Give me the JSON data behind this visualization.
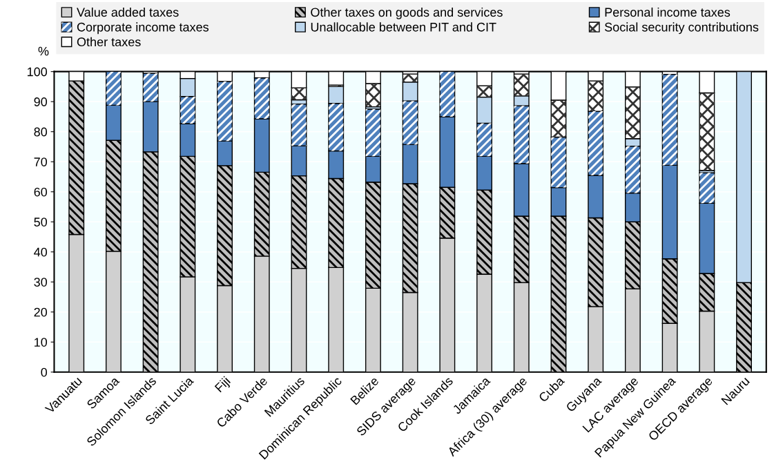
{
  "chart_data": {
    "type": "bar",
    "stacked": true,
    "ylabel": "%",
    "ylim": [
      0,
      100
    ],
    "yticks": [
      0,
      10,
      20,
      30,
      40,
      50,
      60,
      70,
      80,
      90,
      100
    ],
    "grid": "y",
    "legend": "top",
    "categories": [
      "Vanuatu",
      "Samoa",
      "Solomon Islands",
      "Saint Lucia",
      "Fiji",
      "Cabo Verde",
      "Mauritius",
      "Dominican Republic",
      "Belize",
      "SIDS average",
      "Cook Islands",
      "Jamaica",
      "Africa (30) average",
      "Cuba",
      "Guyana",
      "LAC average",
      "Papua New Guinea",
      "OECD average",
      "Nauru"
    ],
    "series": [
      {
        "name": "Value added taxes",
        "color": "#d0d0d0",
        "values": [
          45.8,
          40.2,
          null,
          31.7,
          28.8,
          38.6,
          34.5,
          34.8,
          27.9,
          26.5,
          44.6,
          32.6,
          29.8,
          null,
          21.8,
          27.7,
          16.2,
          20.3,
          null
        ]
      },
      {
        "name": "Other taxes on goods and services",
        "color": "#bebebe",
        "values": [
          51.1,
          36.9,
          73.3,
          40.1,
          39.9,
          27.9,
          30.8,
          29.6,
          35.3,
          36.2,
          16.9,
          28.0,
          22.1,
          51.9,
          29.5,
          22.3,
          21.5,
          12.5,
          29.8
        ]
      },
      {
        "name": "Personal income taxes",
        "color": "#4f81bd",
        "values": [
          null,
          11.7,
          16.7,
          10.9,
          8.2,
          17.8,
          10.0,
          9.2,
          8.6,
          13.0,
          23.5,
          11.2,
          17.5,
          9.5,
          14.2,
          9.6,
          31.1,
          23.4,
          null
        ]
      },
      {
        "name": "Corporate income taxes",
        "color": "#4f81bd",
        "values": [
          null,
          11.2,
          9.4,
          9.0,
          19.8,
          13.6,
          13.9,
          15.8,
          15.7,
          14.5,
          15.0,
          11.0,
          19.2,
          16.8,
          21.3,
          15.6,
          30.3,
          10.1,
          null
        ]
      },
      {
        "name": "Unallocable between PIT and CIT",
        "color": "#bdd7ee",
        "values": [
          null,
          null,
          null,
          6.0,
          null,
          null,
          1.4,
          5.6,
          0.8,
          6.3,
          null,
          8.7,
          3.3,
          null,
          null,
          2.5,
          null,
          0.8,
          70.2
        ]
      },
      {
        "name": "Social security contributions",
        "color": "#ffffff",
        "values": [
          null,
          null,
          null,
          null,
          null,
          null,
          4.0,
          0.5,
          7.7,
          2.7,
          null,
          3.8,
          7.3,
          12.3,
          10.1,
          17.2,
          null,
          25.8,
          null
        ]
      },
      {
        "name": "Other taxes",
        "color": "#ffffff",
        "values": [
          3.1,
          null,
          0.6,
          2.3,
          3.3,
          2.1,
          5.4,
          4.5,
          4.0,
          0.8,
          null,
          4.7,
          0.8,
          9.5,
          3.1,
          5.1,
          0.9,
          7.1,
          null
        ]
      }
    ]
  }
}
